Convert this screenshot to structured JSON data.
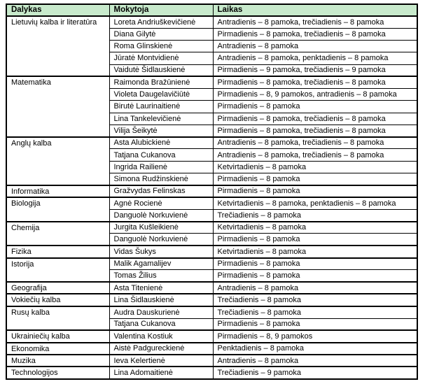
{
  "colors": {
    "header_bg": "#c8eacc",
    "border": "#000000",
    "text": "#000000",
    "page_bg": "#ffffff"
  },
  "table": {
    "columns": {
      "subject": "Dalykas",
      "teacher": "Mokytoja",
      "time": "Laikas"
    },
    "groups": [
      {
        "subject": "Lietuvių kalba ir literatūra",
        "rows": [
          {
            "teacher": "Loreta Andriuškevičienė",
            "time": "Antradienis – 8 pamoka, trečiadienis – 8 pamoka"
          },
          {
            "teacher": "Diana Gilytė",
            "time": "Pirmadienis – 8 pamoka, trečiadienis – 8 pamoka"
          },
          {
            "teacher": "Roma Glinskienė",
            "time": "Antradienis – 8 pamoka"
          },
          {
            "teacher": "Jūratė Montvidienė",
            "time": "Antradienis – 8 pamoka, penktadienis – 8 pamoka"
          },
          {
            "teacher": "Vaidutė Šidlauskienė",
            "time": "Pirmadienis – 9 pamoka, trečiadienis – 9 pamoka"
          }
        ]
      },
      {
        "subject": "Matematika",
        "rows": [
          {
            "teacher": "Raimonda Bražūnienė",
            "time": "Pirmadienis – 8 pamoka, trečiadienis – 8 pamoka"
          },
          {
            "teacher": "Violeta Daugelavičiūtė",
            "time": "Pirmadienis – 8, 9 pamokos, antradienis – 8 pamoka"
          },
          {
            "teacher": "Birutė Laurinaitienė",
            "time": "Pirmadienis – 8 pamoka"
          },
          {
            "teacher": "Lina Tankelevičienė",
            "time": "Pirmadienis – 8 pamoka, trečiadienis – 8 pamoka"
          },
          {
            "teacher": "Vilija Šeikytė",
            "time": "Pirmadienis – 8 pamoka, trečiadienis – 8 pamoka"
          }
        ]
      },
      {
        "subject": "Anglų kalba",
        "rows": [
          {
            "teacher": "Asta Alubickienė",
            "time": "Antradienis – 8 pamoka, trečiadienis – 8 pamoka"
          },
          {
            "teacher": "Tatjana Cukanova",
            "time": "Antradienis – 8 pamoka, trečiadienis – 8 pamoka"
          },
          {
            "teacher": "Ingrida Railienė",
            "time": "Ketvirtadienis – 8 pamoka"
          },
          {
            "teacher": "Simona Rudžinskienė",
            "time": "Pirmadienis – 8 pamoka"
          }
        ]
      },
      {
        "subject": "Informatika",
        "rows": [
          {
            "teacher": "Gražvydas Felinskas",
            "time": "Pirmadienis – 8 pamoka"
          }
        ]
      },
      {
        "subject": "Biologija",
        "rows": [
          {
            "teacher": "Agnė Rocienė",
            "time": "Ketvirtadienis – 8 pamoka, penktadienis – 8 pamoka"
          },
          {
            "teacher": "Danguolė Norkuvienė",
            "time": "Trečiadienis – 8 pamoka"
          }
        ]
      },
      {
        "subject": "Chemija",
        "rows": [
          {
            "teacher": "Jurgita Kušleikienė",
            "time": "Ketvirtadienis – 8 pamoka"
          },
          {
            "teacher": "Danguolė Norkuvienė",
            "time": "Pirmadienis – 8 pamoka"
          }
        ]
      },
      {
        "subject": "Fizika",
        "rows": [
          {
            "teacher": "Vidas Šukys",
            "time": "Ketvirtadienis – 8 pamoka"
          }
        ]
      },
      {
        "subject": "Istorija",
        "rows": [
          {
            "teacher": "Malik Agamalijev",
            "time": "Pirmadienis – 8 pamoka"
          },
          {
            "teacher": "Tomas Žilius",
            "time": "Pirmadienis – 8 pamoka"
          }
        ]
      },
      {
        "subject": "Geografija",
        "rows": [
          {
            "teacher": "Asta Titenienė",
            "time": "Antradienis – 8 pamoka"
          }
        ]
      },
      {
        "subject": "Vokiečių kalba",
        "rows": [
          {
            "teacher": "Lina Šidlauskienė",
            "time": "Trečiadienis – 8 pamoka"
          }
        ]
      },
      {
        "subject": "Rusų kalba",
        "rows": [
          {
            "teacher": "Audra Dauskurienė",
            "time": "Trečiadienis – 8 pamoka"
          },
          {
            "teacher": "Tatjana Cukanova",
            "time": "Pirmadienis – 8 pamoka"
          }
        ]
      },
      {
        "subject": "Ukrainiečių kalba",
        "rows": [
          {
            "teacher": "Valentina Kostiuk",
            "time": "Pirmadienis – 8, 9 pamokos"
          }
        ]
      },
      {
        "subject": "Ekonomika",
        "rows": [
          {
            "teacher": "Aistė Padgureckienė",
            "time": "Penktadienis – 8 pamoka"
          }
        ]
      },
      {
        "subject": "Muzika",
        "rows": [
          {
            "teacher": "Ieva Kelertienė",
            "time": "Antradienis – 8 pamoka"
          }
        ]
      },
      {
        "subject": "Technologijos",
        "rows": [
          {
            "teacher": "Lina Adomaitienė",
            "time": "Trečiadienis – 9 pamoka"
          }
        ]
      }
    ]
  }
}
